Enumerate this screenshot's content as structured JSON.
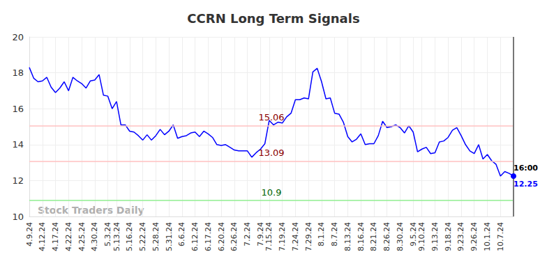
{
  "chart_data": {
    "type": "line",
    "title": "CCRN Long Term Signals",
    "categories": [
      "4.9.24",
      null,
      null,
      "4.12.24",
      null,
      null,
      "4.17.24",
      null,
      null,
      "4.22.24",
      null,
      null,
      "4.25.24",
      null,
      null,
      "4.30.24",
      null,
      null,
      "5.3.24",
      null,
      "5.13.24",
      null,
      null,
      "5.16.24",
      null,
      null,
      "5.22.24",
      null,
      null,
      "5.28.24",
      null,
      null,
      "5.31.24",
      null,
      null,
      "6.6.24",
      null,
      null,
      "6.12.24",
      null,
      null,
      "6.17.24",
      null,
      null,
      "6.20.24",
      null,
      null,
      "6.26.24",
      null,
      null,
      "7.2.24",
      null,
      null,
      "7.9.24",
      null,
      "7.15.24",
      null,
      null,
      "7.19.24",
      null,
      null,
      "7.24.24",
      null,
      null,
      "7.29.24",
      null,
      null,
      "8.1.24",
      null,
      null,
      "8.7.24",
      null,
      null,
      "8.13.24",
      null,
      null,
      "8.16.24",
      null,
      null,
      "8.21.24",
      null,
      null,
      "8.26.24",
      null,
      null,
      "8.30.24",
      null,
      null,
      "9.5.24",
      null,
      "9.10.24",
      null,
      null,
      "9.13.24",
      null,
      null,
      "9.18.24",
      null,
      null,
      "9.23.24",
      null,
      null,
      "9.26.24",
      null,
      null,
      "10.1.24",
      null,
      null,
      "10.7.24",
      null,
      null,
      null
    ],
    "values": [
      18.3,
      17.7,
      17.5,
      17.55,
      17.75,
      17.2,
      16.9,
      17.15,
      17.5,
      17.0,
      17.75,
      17.55,
      17.4,
      17.15,
      17.55,
      17.6,
      17.9,
      16.75,
      16.7,
      16.0,
      16.4,
      15.1,
      15.1,
      14.75,
      14.7,
      14.5,
      14.25,
      14.55,
      14.25,
      14.5,
      14.85,
      14.55,
      14.75,
      15.1,
      14.35,
      14.45,
      14.5,
      14.65,
      14.7,
      14.45,
      14.75,
      14.6,
      14.4,
      14.0,
      13.95,
      14.0,
      13.85,
      13.7,
      13.65,
      13.65,
      13.65,
      13.3,
      13.55,
      13.75,
      14.05,
      15.35,
      15.1,
      15.25,
      15.2,
      15.55,
      15.75,
      16.5,
      16.5,
      16.6,
      16.55,
      18.05,
      18.25,
      17.5,
      16.55,
      16.6,
      15.75,
      15.7,
      15.25,
      14.45,
      14.15,
      14.3,
      14.6,
      14.0,
      14.05,
      14.05,
      14.5,
      15.3,
      14.95,
      15.0,
      15.1,
      14.95,
      14.65,
      15.05,
      14.7,
      13.6,
      13.75,
      13.85,
      13.5,
      13.55,
      14.15,
      14.2,
      14.4,
      14.8,
      14.95,
      14.5,
      14.0,
      13.65,
      13.5,
      14.0,
      13.2,
      13.45,
      13.1,
      12.9,
      12.25,
      12.5,
      12.4,
      12.25
    ],
    "color": "#0000ff",
    "ylim": [
      10,
      20
    ],
    "yticks": [
      10,
      12,
      14,
      16,
      18,
      20
    ],
    "grid": true,
    "reference_lines": [
      {
        "value": 15.06,
        "color": "#ffc0c0",
        "label_color": "#8b0000"
      },
      {
        "value": 13.09,
        "color": "#ffc0c0",
        "label_color": "#8b0000"
      },
      {
        "value": 10.9,
        "color": "#90ee90",
        "label_color": "#006400"
      }
    ],
    "last_point": {
      "time": "16:00",
      "value": 12.25
    },
    "watermark": "Stock Traders Daily"
  }
}
